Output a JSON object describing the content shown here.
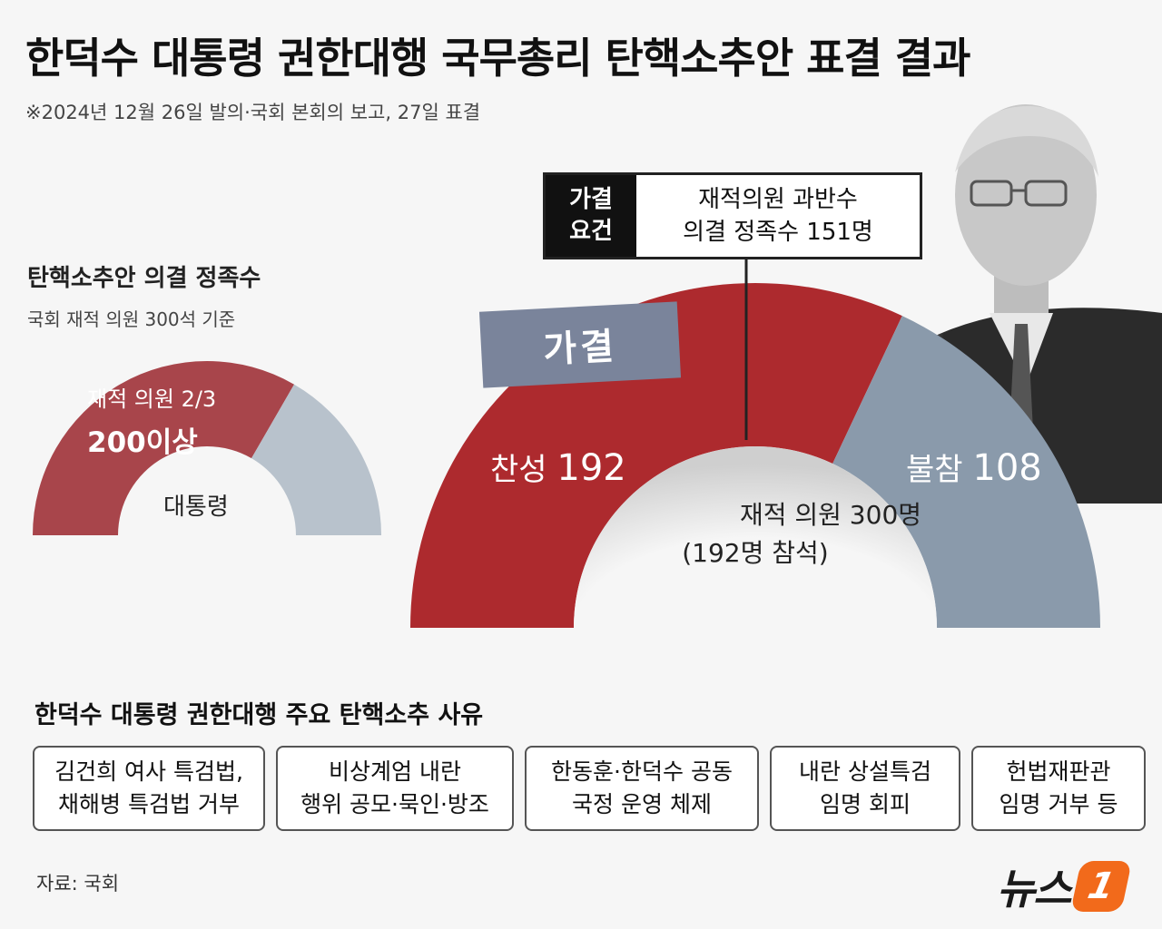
{
  "title": "한덕수 대통령 권한대행 국무총리 탄핵소추안 표결 결과",
  "subtitle": "※2024년 12월 26일 발의·국회 본회의 보고, 27일 표결",
  "quorum": {
    "title": "탄핵소추안 의결 정족수",
    "subtitle": "국회 재적 의원 300석 기준",
    "label_line1": "재적 의원 2/3",
    "label_line2": "200이상",
    "center_label": "대통령",
    "share": 0.6667
  },
  "requirement": {
    "tag_line1": "가결",
    "tag_line2": "요건",
    "text_line1": "재적의원 과반수",
    "text_line2": "의결 정족수 151명"
  },
  "stamp": "가결",
  "center_line1": "재적 의원 300명",
  "center_line2": "(192명 참석)",
  "chart_data": {
    "type": "pie",
    "subtype": "half-donut",
    "categories": [
      "찬성",
      "불참"
    ],
    "values": [
      192,
      108
    ],
    "total": 300,
    "threshold": 151,
    "colors": [
      "#ad2a2e",
      "#8a9aab"
    ]
  },
  "labels": {
    "yes_name": "찬성",
    "yes_value": "192",
    "absent_name": "불참",
    "absent_value": "108"
  },
  "reasons_title": "한덕수 대통령 권한대행 주요 탄핵소추 사유",
  "reasons": [
    "김건희 여사 특검법,\n채해병 특검법 거부",
    "비상계엄 내란\n행위 공모·묵인·방조",
    "한동훈·한덕수 공동\n국정 운영 체제",
    "내란 상설특검\n임명 회피",
    "헌법재판관\n임명 거부 등"
  ],
  "source": "자료: 국회",
  "logo": {
    "text": "뉴스",
    "badge": "1"
  },
  "colors": {
    "yes": "#ad2a2e",
    "absent": "#8a9aab",
    "quorum_red": "#a8454b",
    "quorum_grey": "#b8c2cc"
  }
}
